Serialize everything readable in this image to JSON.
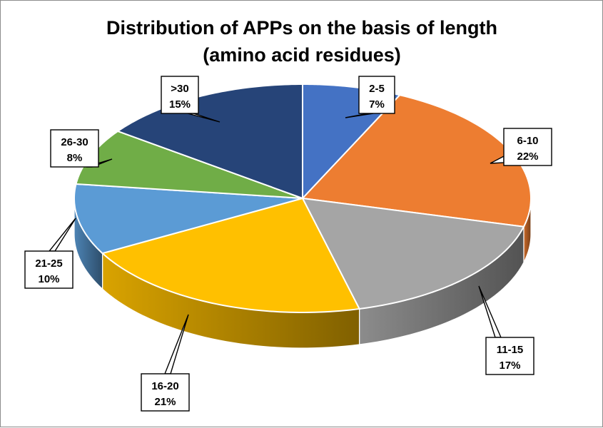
{
  "chart_data": {
    "type": "pie",
    "style": "3d-exploded-none",
    "title_lines": [
      "Distribution of APPs on the basis of length",
      "(amino acid residues)"
    ],
    "slices": [
      {
        "label": "2-5",
        "value": 7,
        "display": "7%",
        "color": "#4472c4"
      },
      {
        "label": "6-10",
        "value": 22,
        "display": "22%",
        "color": "#ed7d31"
      },
      {
        "label": "11-15",
        "value": 17,
        "display": "17%",
        "color": "#a5a5a5"
      },
      {
        "label": "16-20",
        "value": 21,
        "display": "21%",
        "color": "#ffc000"
      },
      {
        "label": "21-25",
        "value": 10,
        "display": "10%",
        "color": "#5b9bd5"
      },
      {
        "label": "26-30",
        "value": 8,
        "display": "8%",
        "color": "#70ad47"
      },
      {
        "label": ">30",
        "value": 15,
        "display": "15%",
        "color": "#264478"
      }
    ],
    "start_position": "top",
    "direction": "clockwise",
    "legend": "none"
  }
}
